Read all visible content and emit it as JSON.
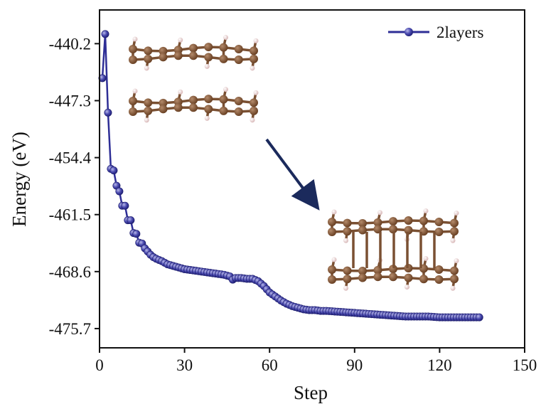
{
  "chart_data": {
    "type": "line",
    "xlabel": "Step",
    "ylabel": "Energy (eV)",
    "xlim": [
      0,
      150
    ],
    "ylim": [
      -478.1,
      -436.0
    ],
    "xticks": [
      0,
      30,
      60,
      90,
      120,
      150
    ],
    "xtick_labels": [
      "0",
      "30",
      "60",
      "90",
      "120",
      "150"
    ],
    "yticks": [
      -440.2,
      -447.3,
      -454.4,
      -461.5,
      -468.6,
      -475.7
    ],
    "ytick_labels": [
      "-440.2",
      "-447.3",
      "-454.4",
      "-461.5",
      "-468.6",
      "-475.7"
    ],
    "grid": false,
    "legend_position": "top-right",
    "series": [
      {
        "name": "2layers",
        "color": "#2e2e96",
        "marker": "sphere",
        "x": [
          1,
          2,
          3,
          4,
          5,
          6,
          7,
          8,
          9,
          10,
          11,
          12,
          13,
          14,
          15,
          16,
          17,
          18,
          19,
          20,
          22,
          24,
          26,
          28,
          30,
          32,
          34,
          36,
          38,
          40,
          42,
          44,
          46,
          47,
          48,
          50,
          52,
          54,
          56,
          58,
          60,
          62,
          64,
          66,
          68,
          70,
          72,
          74,
          76,
          78,
          80,
          84,
          88,
          92,
          96,
          100,
          104,
          108,
          112,
          116,
          120,
          124,
          128,
          132,
          134
        ],
        "y": [
          -444.5,
          -439.0,
          -448.8,
          -455.8,
          -456.0,
          -457.9,
          -458.6,
          -460.4,
          -460.4,
          -462.2,
          -462.2,
          -463.8,
          -463.9,
          -465.0,
          -465.1,
          -465.7,
          -466.1,
          -466.5,
          -466.8,
          -467.0,
          -467.3,
          -467.7,
          -467.9,
          -468.1,
          -468.3,
          -468.4,
          -468.5,
          -468.6,
          -468.7,
          -468.8,
          -468.9,
          -469.0,
          -469.2,
          -469.6,
          -469.4,
          -469.4,
          -469.5,
          -469.5,
          -469.8,
          -470.4,
          -471.2,
          -471.7,
          -472.2,
          -472.6,
          -472.9,
          -473.1,
          -473.3,
          -473.4,
          -473.4,
          -473.5,
          -473.5,
          -473.6,
          -473.7,
          -473.8,
          -473.9,
          -474.0,
          -474.1,
          -474.2,
          -474.2,
          -474.2,
          -474.3,
          -474.3,
          -474.3,
          -474.3,
          -474.3
        ]
      }
    ]
  }
}
